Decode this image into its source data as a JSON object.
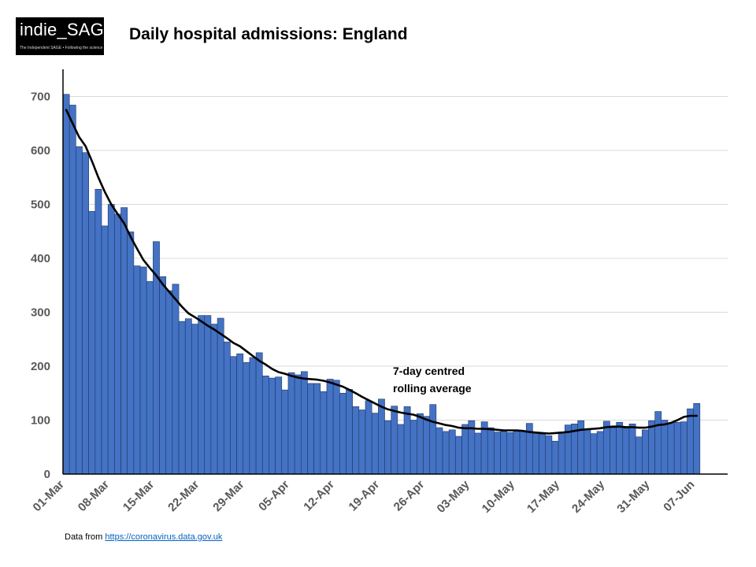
{
  "logo": {
    "text": "indie_SAGE",
    "tagline": "The Independent SAGE • Following the science"
  },
  "title": "Daily hospital admissions: England",
  "source": {
    "prefix": "Data from ",
    "link_text": "https://coronavirus.data.gov.uk"
  },
  "colors": {
    "bar_fill": "#4472c4",
    "bar_stroke": "#1f3864",
    "line": "#000000",
    "grid": "#d9d9d9",
    "axis": "#000000"
  },
  "chart_data": {
    "type": "bar",
    "title": "Daily hospital admissions: England",
    "xlabel": "",
    "ylabel": "",
    "ylim": [
      0,
      750
    ],
    "yticks": [
      0,
      100,
      200,
      300,
      400,
      500,
      600,
      700
    ],
    "grid": true,
    "x_tick_labels": [
      "01-Mar",
      "08-Mar",
      "15-Mar",
      "22-Mar",
      "29-Mar",
      "05-Apr",
      "12-Apr",
      "19-Apr",
      "26-Apr",
      "03-May",
      "10-May",
      "17-May",
      "24-May",
      "31-May",
      "07-Jun"
    ],
    "x_tick_every": 7,
    "series": [
      {
        "type": "bar",
        "values": [
          704,
          684,
          607,
          596,
          487,
          528,
          460,
          500,
          482,
          494,
          449,
          386,
          384,
          357,
          431,
          366,
          340,
          352,
          283,
          288,
          278,
          294,
          294,
          278,
          289,
          245,
          218,
          223,
          207,
          216,
          225,
          182,
          178,
          180,
          156,
          188,
          184,
          190,
          168,
          168,
          153,
          176,
          174,
          150,
          157,
          125,
          119,
          136,
          113,
          139,
          99,
          126,
          92,
          125,
          100,
          112,
          107,
          129,
          86,
          79,
          82,
          70,
          92,
          99,
          76,
          97,
          86,
          78,
          79,
          77,
          79,
          80,
          94,
          76,
          74,
          71,
          61,
          78,
          91,
          93,
          99,
          84,
          75,
          79,
          98,
          86,
          96,
          85,
          93,
          69,
          82,
          99,
          116,
          100,
          94,
          96,
          97,
          121,
          131
        ]
      },
      {
        "name": "7-day centred rolling average",
        "type": "line",
        "values": [
          675,
          650,
          625,
          608,
          580,
          550,
          523,
          500,
          482,
          465,
          440,
          418,
          397,
          382,
          368,
          352,
          338,
          324,
          310,
          298,
          291,
          283,
          275,
          268,
          260,
          252,
          243,
          237,
          228,
          219,
          210,
          203,
          195,
          189,
          186,
          182,
          179,
          177,
          176,
          175,
          173,
          170,
          166,
          162,
          156,
          150,
          143,
          137,
          131,
          125,
          120,
          117,
          114,
          112,
          110,
          106,
          101,
          97,
          94,
          91,
          89,
          86,
          85,
          85,
          84,
          84,
          83,
          82,
          81,
          81,
          81,
          80,
          78,
          77,
          76,
          75,
          76,
          77,
          78,
          80,
          82,
          83,
          84,
          85,
          87,
          88,
          88,
          87,
          87,
          86,
          86,
          88,
          91,
          92,
          95,
          100,
          106,
          108,
          108
        ]
      }
    ],
    "annotations": [
      "7-day centred",
      "rolling average"
    ]
  }
}
